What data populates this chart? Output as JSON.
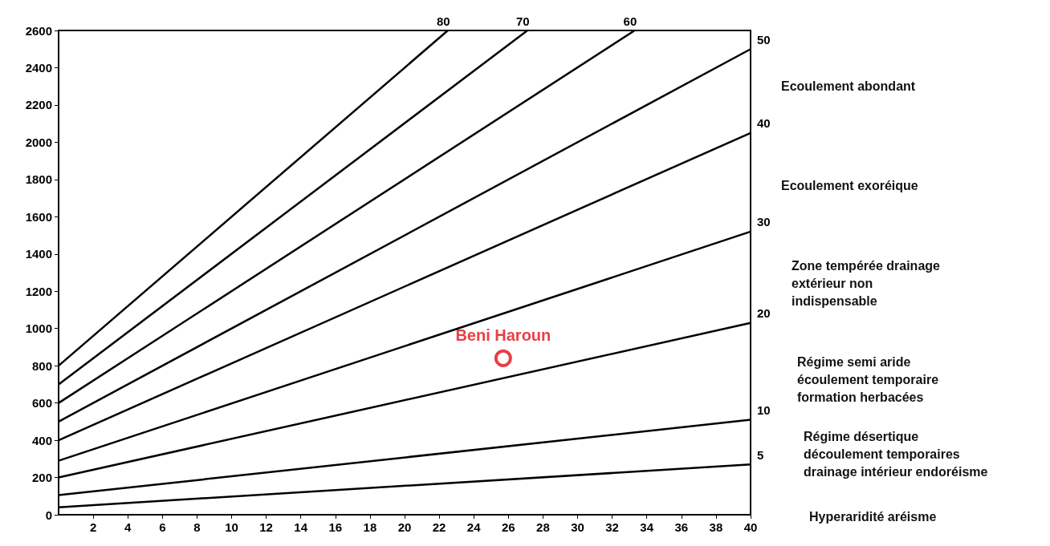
{
  "chart_data": {
    "type": "line",
    "xlim": [
      0,
      40
    ],
    "ylim": [
      0,
      2600
    ],
    "xticks": [
      2,
      4,
      6,
      8,
      10,
      12,
      14,
      16,
      18,
      20,
      22,
      24,
      26,
      28,
      30,
      32,
      34,
      36,
      38,
      40
    ],
    "yticks": [
      0,
      200,
      400,
      600,
      800,
      1000,
      1200,
      1400,
      1600,
      1800,
      2000,
      2200,
      2400,
      2600
    ],
    "grid": false,
    "legend": false,
    "marker": "none",
    "line_style": "solid",
    "series": [
      {
        "name": "80",
        "color": "#000000",
        "x": [
          0,
          22.5
        ],
        "values": [
          800,
          2600
        ]
      },
      {
        "name": "70",
        "color": "#000000",
        "x": [
          0,
          27.1
        ],
        "values": [
          700,
          2600
        ]
      },
      {
        "name": "60",
        "color": "#000000",
        "x": [
          0,
          33.3
        ],
        "values": [
          600,
          2600
        ]
      },
      {
        "name": "50",
        "color": "#000000",
        "x": [
          0,
          40
        ],
        "values": [
          500,
          2500
        ]
      },
      {
        "name": "40",
        "color": "#000000",
        "x": [
          0,
          40
        ],
        "values": [
          400,
          2050
        ]
      },
      {
        "name": "30",
        "color": "#000000",
        "x": [
          0,
          40
        ],
        "values": [
          290,
          1520
        ]
      },
      {
        "name": "20",
        "color": "#000000",
        "x": [
          0,
          40
        ],
        "values": [
          200,
          1030
        ]
      },
      {
        "name": "10",
        "color": "#000000",
        "x": [
          0,
          40
        ],
        "values": [
          105,
          510
        ]
      },
      {
        "name": "5",
        "color": "#000000",
        "x": [
          0,
          40
        ],
        "values": [
          40,
          270
        ]
      },
      {
        "type": "scatter",
        "name": "Beni Haroun",
        "color": "#e0101a",
        "x": [
          25.7
        ],
        "values": [
          840
        ],
        "marker": "circle"
      }
    ],
    "annotations": [
      "Ecoulement abondant",
      "Ecoulement exoréique",
      "Zone tempérée drainage\nextérieur non\nindispensable",
      "Régime semi aride\nécoulement temporaire\nformation herbacées",
      "Régime désertique\ndécoulement temporaires\ndrainage intérieur endoréisme",
      "Hyperaridité aréisme"
    ]
  }
}
